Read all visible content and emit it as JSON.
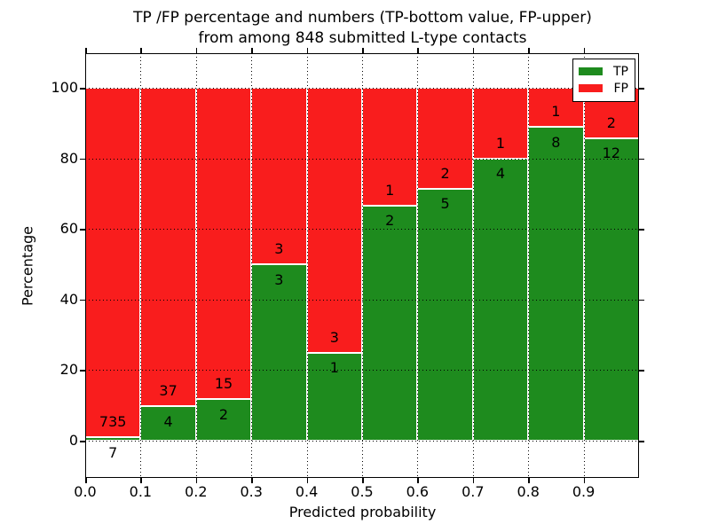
{
  "title": {
    "line1": "TP /FP percentage and numbers (TP-bottom value, FP-upper)",
    "line2": "from among 848 submitted L-type contacts"
  },
  "chart_data": {
    "type": "bar",
    "stacked": true,
    "title": "TP /FP percentage and numbers (TP-bottom value, FP-upper) from among 848 submitted L-type contacts",
    "xlabel": "Predicted probability",
    "ylabel": "Percentage",
    "xlim": [
      0.0,
      1.0
    ],
    "ylim": [
      -10.5,
      109.8
    ],
    "xtick_labels": [
      "0.0",
      "0.1",
      "0.2",
      "0.3",
      "0.4",
      "0.5",
      "0.6",
      "0.7",
      "0.8",
      "0.9"
    ],
    "ytick_values": [
      0,
      20,
      40,
      60,
      80,
      100
    ],
    "grid": "dotted",
    "bin_edges": [
      0.0,
      0.1,
      0.2,
      0.3,
      0.4,
      0.5,
      0.6,
      0.7,
      0.8,
      0.9,
      1.0
    ],
    "categories": [
      "0.0-0.1",
      "0.1-0.2",
      "0.2-0.3",
      "0.3-0.4",
      "0.4-0.5",
      "0.5-0.6",
      "0.6-0.7",
      "0.7-0.8",
      "0.8-0.9",
      "0.9-1.0"
    ],
    "series": [
      {
        "name": "TP",
        "color": "#1e8b1e",
        "counts": [
          7,
          4,
          2,
          3,
          1,
          2,
          5,
          4,
          8,
          12
        ],
        "percent": [
          0.94,
          9.76,
          11.76,
          50.0,
          25.0,
          66.67,
          71.43,
          80.0,
          88.89,
          85.71
        ]
      },
      {
        "name": "FP",
        "color": "#f91d1d",
        "counts": [
          735,
          37,
          15,
          3,
          3,
          1,
          2,
          1,
          1,
          2
        ],
        "percent": [
          99.06,
          90.24,
          88.24,
          50.0,
          75.0,
          33.33,
          28.57,
          20.0,
          11.11,
          14.29
        ]
      }
    ],
    "total_contacts": 848,
    "legend": {
      "position": "upper right",
      "entries": [
        "TP",
        "FP"
      ]
    }
  }
}
